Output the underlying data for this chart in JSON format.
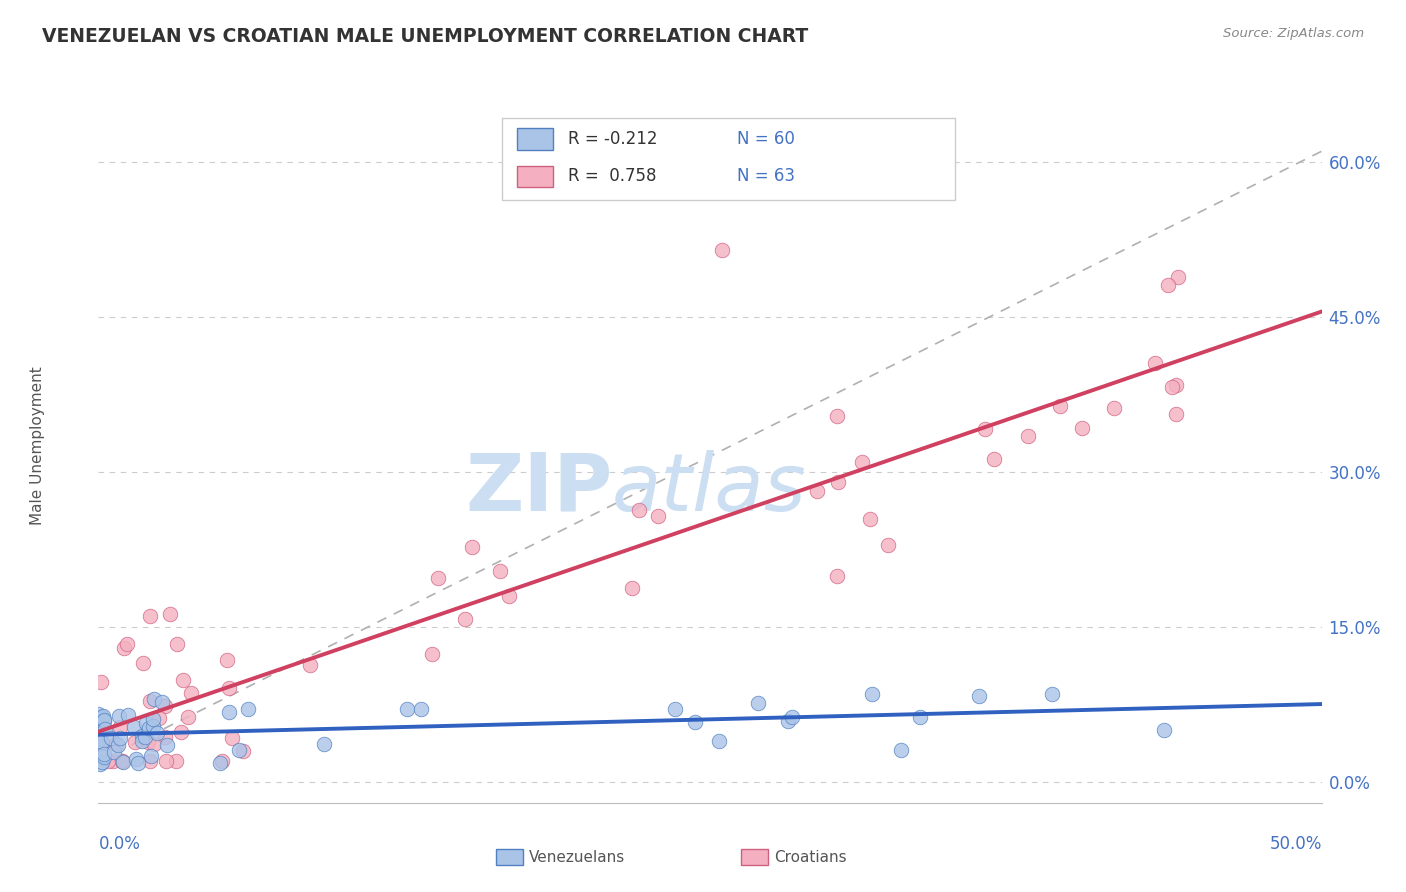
{
  "title": "VENEZUELAN VS CROATIAN MALE UNEMPLOYMENT CORRELATION CHART",
  "source": "Source: ZipAtlas.com",
  "ylabel": "Male Unemployment",
  "xlim": [
    0.0,
    0.5
  ],
  "ylim": [
    -0.02,
    0.67
  ],
  "yticks": [
    0.0,
    0.15,
    0.3,
    0.45,
    0.6
  ],
  "ytick_labels": [
    "0.0%",
    "15.0%",
    "30.0%",
    "45.0%",
    "60.0%"
  ],
  "blue_color": "#aac4e8",
  "blue_edge_color": "#5080c0",
  "blue_line_color": "#3060c0",
  "pink_color": "#f4b0c0",
  "pink_edge_color": "#d06080",
  "pink_line_color": "#d04060",
  "text_color": "#4472c4",
  "R_venezuela": -0.212,
  "N_venezuela": 60,
  "R_croatia": 0.758,
  "N_croatia": 63
}
